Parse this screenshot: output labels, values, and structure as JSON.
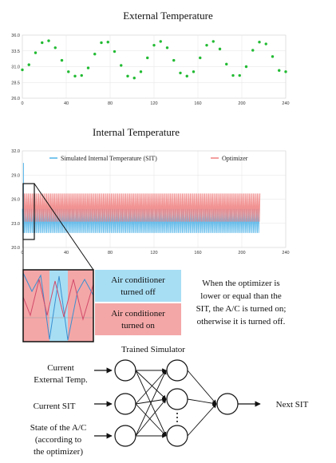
{
  "chart_data": [
    {
      "type": "scatter",
      "title": "External Temperature",
      "xlim": [
        0,
        240
      ],
      "ylim": [
        26.0,
        36.0
      ],
      "x_ticks": [
        "0",
        "40",
        "80",
        "120",
        "160",
        "200",
        "240"
      ],
      "y_ticks": [
        "36.0",
        "33.5",
        "31.0",
        "28.5",
        "26.0"
      ],
      "series": [
        {
          "color": "#22bb33",
          "x": [
            0,
            6,
            12,
            18,
            24,
            30,
            36,
            42,
            48,
            54,
            60,
            66,
            72,
            78,
            84,
            90,
            96,
            102,
            108,
            114,
            120,
            126,
            132,
            138,
            144,
            150,
            156,
            162,
            168,
            174,
            180,
            186,
            192,
            198,
            204,
            210,
            216,
            222,
            228,
            234,
            240
          ],
          "y": [
            30.5,
            31.3,
            33.2,
            34.8,
            35.1,
            34.0,
            32.0,
            30.2,
            29.5,
            29.6,
            30.8,
            33.0,
            34.8,
            34.9,
            33.4,
            31.2,
            29.5,
            29.2,
            30.2,
            32.4,
            34.4,
            35.0,
            34.0,
            32.0,
            30.0,
            29.5,
            30.2,
            32.4,
            34.4,
            35.0,
            33.8,
            31.4,
            29.6,
            29.6,
            31.0,
            33.6,
            34.9,
            34.6,
            32.6,
            30.4,
            30.2
          ]
        }
      ]
    },
    {
      "type": "line",
      "title": "Internal Temperature",
      "xlim": [
        0,
        240
      ],
      "ylim": [
        20.0,
        32.0
      ],
      "x_ticks": [
        "0",
        "40",
        "80",
        "120",
        "160",
        "200",
        "240"
      ],
      "y_ticks": [
        "32.0",
        "29.0",
        "26.0",
        "23.0",
        "20.0"
      ],
      "series": [
        {
          "name": "Simulated Internal Temperature (SIT)",
          "color": "#4fb3e8",
          "low": 21.8,
          "high": 24.8
        },
        {
          "name": "Optimizer",
          "color": "#f08080",
          "low": 23.2,
          "high": 26.7
        }
      ]
    }
  ],
  "callouts": {
    "off_line1": "Air conditioner",
    "off_line2": "turned off",
    "on_line1": "Air conditioner",
    "on_line2": "turned on",
    "off_color": "#a8def4",
    "on_color": "#f4a7a7"
  },
  "explanation": {
    "line1": "When the optimizer is",
    "line2": "lower or equal than the",
    "line3": "SIT, the A/C is turned on;",
    "line4": "otherwise it is turned off."
  },
  "network": {
    "title": "Trained Simulator",
    "input1_line1": "Current",
    "input1_line2": "External Temp.",
    "input2": "Current SIT",
    "input3_line1": "State of the A/C",
    "input3_line2": "(according to",
    "input3_line3": "the optimizer)",
    "output": "Next SIT"
  }
}
